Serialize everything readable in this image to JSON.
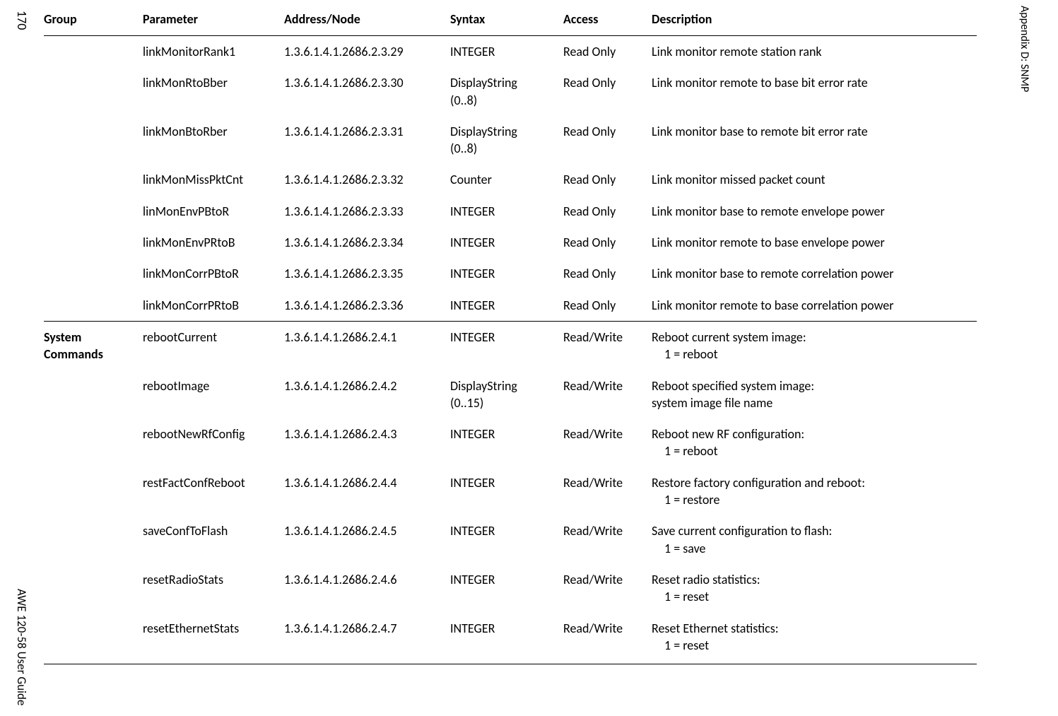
{
  "page_number": "170",
  "appendix_label": "Appendix D: SNMP",
  "footer_guide": "AWE 120-58 User Guide",
  "text_color": "#000000",
  "bg_color": "#ffffff",
  "border_color": "#000000",
  "font_family": "Gill Sans",
  "base_font_size_pt": 13,
  "columns": [
    {
      "key": "group",
      "label": "Group"
    },
    {
      "key": "param",
      "label": "Parameter"
    },
    {
      "key": "addr",
      "label": "Address/Node"
    },
    {
      "key": "syntax",
      "label": "Syntax"
    },
    {
      "key": "access",
      "label": "Access"
    },
    {
      "key": "desc",
      "label": "Description"
    }
  ],
  "rows": [
    {
      "group": "",
      "param": "linkMonitorRank1",
      "addr": "1.3.6.1.4.1.2686.2.3.29",
      "syntax": "INTEGER",
      "access": "Read Only",
      "desc": "Link monitor remote station rank",
      "desc_sub": "",
      "section_start": false
    },
    {
      "group": "",
      "param": "linkMonRtoBber",
      "addr": "1.3.6.1.4.1.2686.2.3.30",
      "syntax": "DisplayString (0..8)",
      "access": "Read Only",
      "desc": "Link monitor remote to base bit error rate",
      "desc_sub": "",
      "section_start": false
    },
    {
      "group": "",
      "param": "linkMonBtoRber",
      "addr": "1.3.6.1.4.1.2686.2.3.31",
      "syntax": "DisplayString (0..8)",
      "access": "Read Only",
      "desc": "Link monitor base to remote bit error rate",
      "desc_sub": "",
      "section_start": false
    },
    {
      "group": "",
      "param": "linkMonMissPktCnt",
      "addr": "1.3.6.1.4.1.2686.2.3.32",
      "syntax": "Counter",
      "access": "Read Only",
      "desc": "Link monitor missed packet count",
      "desc_sub": "",
      "section_start": false
    },
    {
      "group": "",
      "param": "linMonEnvPBtoR",
      "addr": "1.3.6.1.4.1.2686.2.3.33",
      "syntax": "INTEGER",
      "access": "Read Only",
      "desc": "Link monitor base to remote envelope power",
      "desc_sub": "",
      "section_start": false
    },
    {
      "group": "",
      "param": "linkMonEnvPRtoB",
      "addr": "1.3.6.1.4.1.2686.2.3.34",
      "syntax": "INTEGER",
      "access": "Read Only",
      "desc": "Link monitor remote to base envelope power",
      "desc_sub": "",
      "section_start": false
    },
    {
      "group": "",
      "param": "linkMonCorrPBtoR",
      "addr": "1.3.6.1.4.1.2686.2.3.35",
      "syntax": "INTEGER",
      "access": "Read Only",
      "desc": "Link monitor base to remote correlation power",
      "desc_sub": "",
      "section_start": false
    },
    {
      "group": "",
      "param": "linkMonCorrPRtoB",
      "addr": "1.3.6.1.4.1.2686.2.3.36",
      "syntax": "INTEGER",
      "access": "Read Only",
      "desc": "Link monitor remote to base correlation power",
      "desc_sub": "",
      "section_start": false
    },
    {
      "group": "System Commands",
      "param": "rebootCurrent",
      "addr": "1.3.6.1.4.1.2686.2.4.1",
      "syntax": "INTEGER",
      "access": "Read/Write",
      "desc": "Reboot current system image:",
      "desc_sub": "1 = reboot",
      "section_start": true
    },
    {
      "group": "",
      "param": "rebootImage",
      "addr": "1.3.6.1.4.1.2686.2.4.2",
      "syntax": "DisplayString (0..15)",
      "access": "Read/Write",
      "desc": "Reboot specified system image:",
      "desc_sub": "system image file name",
      "section_start": false,
      "desc_sub_noindent": true
    },
    {
      "group": "",
      "param": "rebootNewRfConfig",
      "addr": "1.3.6.1.4.1.2686.2.4.3",
      "syntax": "INTEGER",
      "access": "Read/Write",
      "desc": "Reboot new RF configuration:",
      "desc_sub": "1 = reboot",
      "section_start": false
    },
    {
      "group": "",
      "param": "restFactConfReboot",
      "addr": "1.3.6.1.4.1.2686.2.4.4",
      "syntax": "INTEGER",
      "access": "Read/Write",
      "desc": "Restore factory configuration and reboot:",
      "desc_sub": "1 = restore",
      "section_start": false
    },
    {
      "group": "",
      "param": "saveConfToFlash",
      "addr": "1.3.6.1.4.1.2686.2.4.5",
      "syntax": "INTEGER",
      "access": "Read/Write",
      "desc": "Save current configuration to flash:",
      "desc_sub": "1 = save",
      "section_start": false
    },
    {
      "group": "",
      "param": "resetRadioStats",
      "addr": "1.3.6.1.4.1.2686.2.4.6",
      "syntax": "INTEGER",
      "access": "Read/Write",
      "desc": "Reset radio statistics:",
      "desc_sub": "1 = reset",
      "section_start": false
    },
    {
      "group": "",
      "param": "resetEthernetStats",
      "addr": "1.3.6.1.4.1.2686.2.4.7",
      "syntax": "INTEGER",
      "access": "Read/Write",
      "desc": "Reset Ethernet statistics:",
      "desc_sub": "1 = reset",
      "section_start": false
    }
  ]
}
